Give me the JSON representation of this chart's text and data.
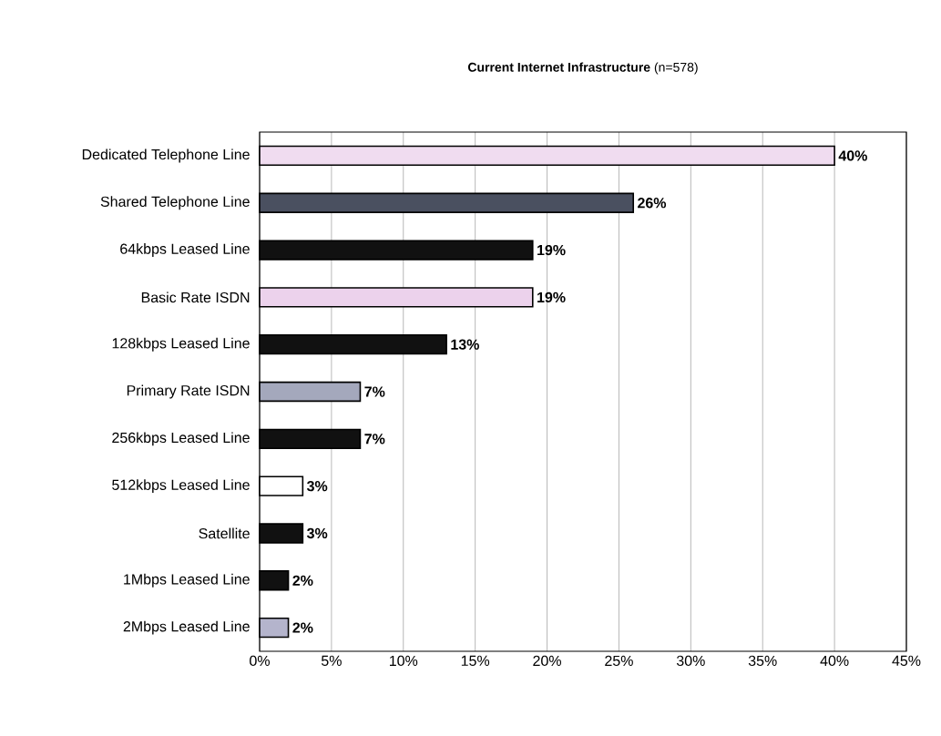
{
  "chart_data": {
    "type": "bar",
    "orientation": "horizontal",
    "title": "**Current Internet Infrastructure** (n=578)",
    "categories": [
      "Dedicated Telephone Line",
      "Shared Telephone Line",
      "64kbps Leased Line",
      "Basic Rate ISDN",
      "128kbps Leased Line",
      "Primary Rate ISDN",
      "256kbps Leased Line",
      "512kbps Leased Line",
      "Satellite",
      "1Mbps Leased Line",
      "2Mbps Leased Line"
    ],
    "values": [
      40,
      26,
      19,
      19,
      13,
      7,
      7,
      3,
      3,
      2,
      2
    ],
    "value_labels": [
      "40%",
      "26%",
      "19%",
      "19%",
      "13%",
      "7%",
      "7%",
      "3%",
      "3%",
      "2%",
      "2%"
    ],
    "colors": [
      "#f0dcf0",
      "#4a5060",
      "#111111",
      "#ecd2ec",
      "#111111",
      "#a4a8bc",
      "#111111",
      "#ffffff",
      "#111111",
      "#111111",
      "#b4b4cc"
    ],
    "xlim": [
      0,
      45
    ],
    "xticks": [
      {
        "value": 0,
        "label": "0%"
      },
      {
        "value": 5,
        "label": "5%"
      },
      {
        "value": 10,
        "label": "10%"
      },
      {
        "value": 15,
        "label": "15%"
      },
      {
        "value": 20,
        "label": "20%"
      },
      {
        "value": 25,
        "label": "25%"
      },
      {
        "value": 30,
        "label": "30%"
      },
      {
        "value": 35,
        "label": "35%"
      },
      {
        "value": 40,
        "label": "40%"
      },
      {
        "value": 45,
        "label": "45%"
      }
    ],
    "grid": "x"
  }
}
